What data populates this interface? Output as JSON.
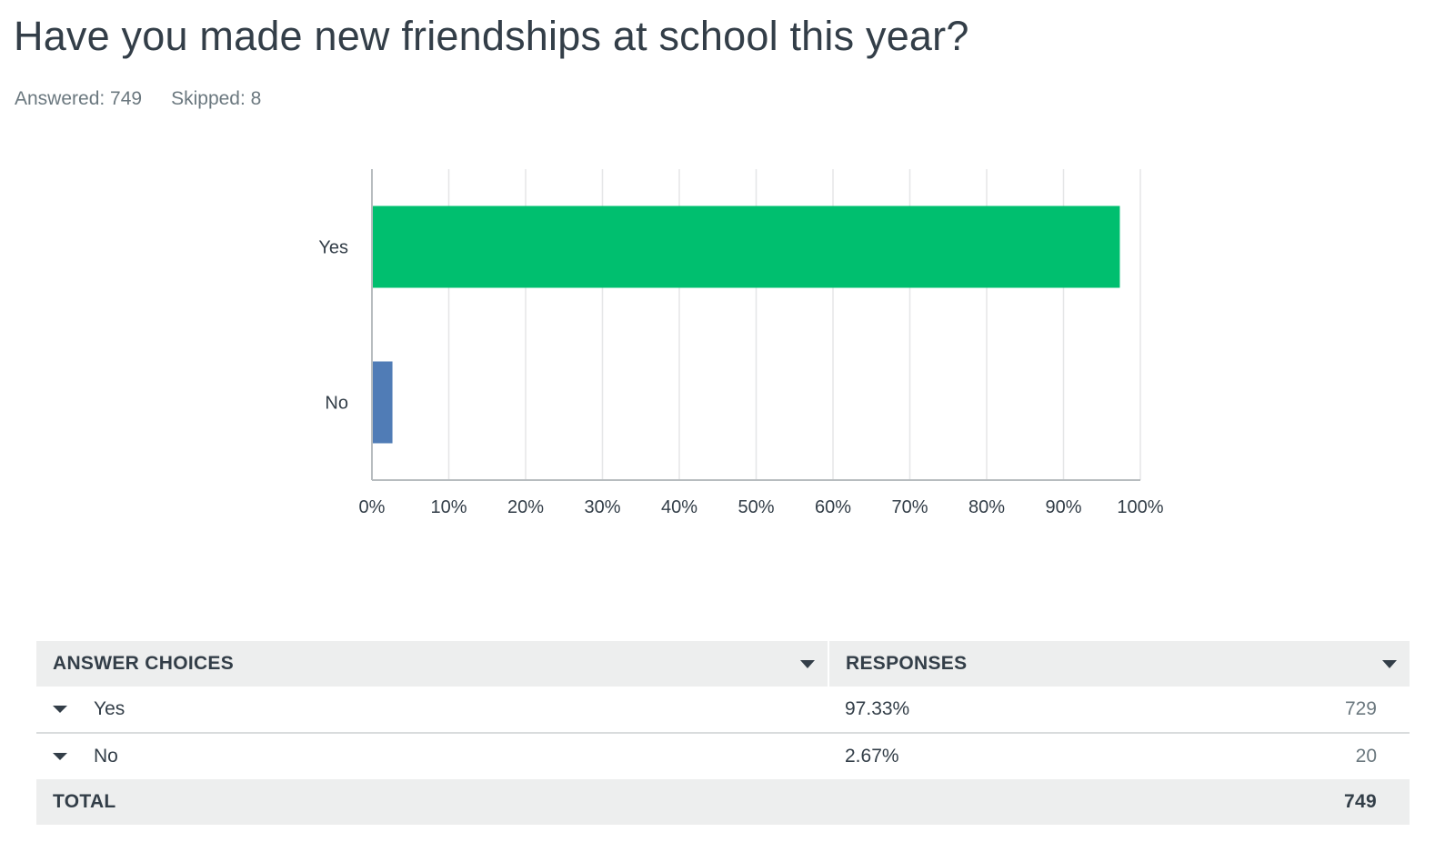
{
  "question": {
    "title": "Have you made new friendships at school this year?",
    "answered_label": "Answered: 749",
    "skipped_label": "Skipped: 8"
  },
  "chart_data": {
    "type": "bar",
    "orientation": "horizontal",
    "categories": [
      "Yes",
      "No"
    ],
    "values": [
      97.33,
      2.67
    ],
    "colors": [
      "#00bf6f",
      "#507cb6"
    ],
    "xlim": [
      0,
      100
    ],
    "xticks": [
      "0%",
      "10%",
      "20%",
      "30%",
      "40%",
      "50%",
      "60%",
      "70%",
      "80%",
      "90%",
      "100%"
    ],
    "grid": true
  },
  "table": {
    "headers": {
      "choices": "ANSWER CHOICES",
      "responses": "RESPONSES"
    },
    "rows": [
      {
        "choice": "Yes",
        "percent": "97.33%",
        "count": "729"
      },
      {
        "choice": "No",
        "percent": "2.67%",
        "count": "20"
      }
    ],
    "total": {
      "label": "TOTAL",
      "value": "749"
    }
  }
}
